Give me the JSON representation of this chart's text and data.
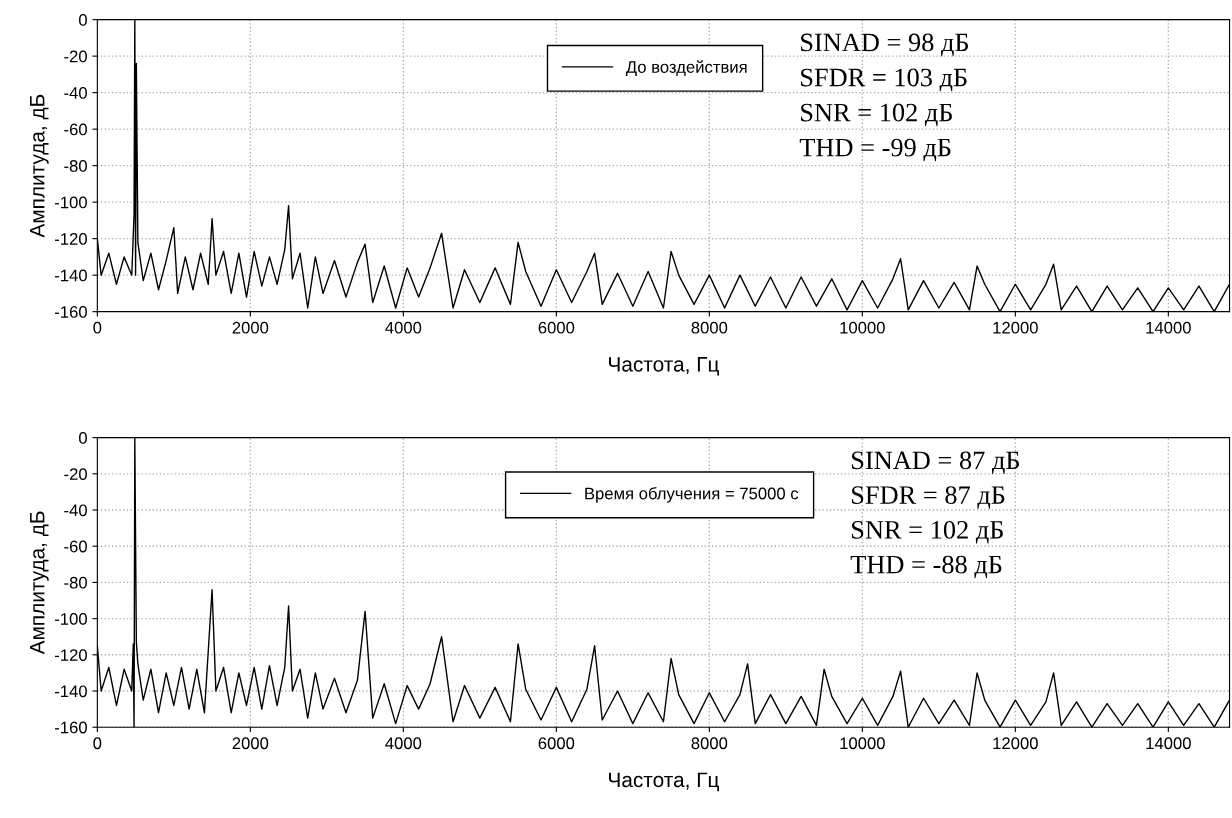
{
  "chart_data": [
    {
      "type": "line",
      "xlabel": "Частота, Гц",
      "ylabel": "Амплитуда, дБ",
      "xlim": [
        0,
        14800
      ],
      "ylim": [
        -160,
        0
      ],
      "xticks": [
        0,
        2000,
        4000,
        6000,
        8000,
        10000,
        12000,
        14000
      ],
      "yticks": [
        -160,
        -140,
        -120,
        -100,
        -80,
        -60,
        -40,
        -20,
        0
      ],
      "grid": true,
      "legend": "top right",
      "marker": "none",
      "line_style": "solid",
      "annotations": [
        "SINAD = 98 дБ",
        "SFDR = 103 дБ",
        "SNR = 102 дБ",
        "THD = -99 дБ"
      ],
      "series": [
        {
          "name": "До воздействия",
          "color": "#000000",
          "x": [
            0,
            50,
            150,
            250,
            350,
            450,
            480,
            490,
            500,
            510,
            530,
            600,
            700,
            800,
            900,
            1000,
            1050,
            1150,
            1250,
            1350,
            1450,
            1500,
            1550,
            1650,
            1750,
            1850,
            1950,
            2050,
            2150,
            2250,
            2350,
            2450,
            2500,
            2550,
            2650,
            2750,
            2850,
            2950,
            3100,
            3250,
            3400,
            3500,
            3600,
            3750,
            3900,
            4050,
            4200,
            4350,
            4500,
            4650,
            4800,
            5000,
            5200,
            5400,
            5500,
            5600,
            5800,
            6000,
            6200,
            6400,
            6500,
            6600,
            6800,
            7000,
            7200,
            7400,
            7500,
            7600,
            7800,
            8000,
            8200,
            8400,
            8600,
            8800,
            9000,
            9200,
            9400,
            9600,
            9800,
            10000,
            10200,
            10400,
            10500,
            10600,
            10800,
            11000,
            11200,
            11400,
            11500,
            11600,
            11800,
            12000,
            12200,
            12400,
            12500,
            12600,
            12800,
            13000,
            13200,
            13400,
            13600,
            13800,
            14000,
            14200,
            14400,
            14600,
            14800
          ],
          "values": [
            -120,
            -140,
            -128,
            -145,
            -130,
            -140,
            -107,
            0,
            -140,
            -24,
            -122,
            -143,
            -128,
            -148,
            -132,
            -114,
            -150,
            -130,
            -148,
            -128,
            -145,
            -109,
            -140,
            -127,
            -150,
            -128,
            -152,
            -127,
            -146,
            -130,
            -145,
            -126,
            -102,
            -142,
            -128,
            -158,
            -130,
            -150,
            -132,
            -152,
            -133,
            -123,
            -155,
            -135,
            -158,
            -136,
            -152,
            -136,
            -117,
            -158,
            -137,
            -155,
            -136,
            -156,
            -122,
            -138,
            -157,
            -137,
            -155,
            -138,
            -128,
            -156,
            -139,
            -157,
            -138,
            -158,
            -127,
            -140,
            -156,
            -140,
            -158,
            -140,
            -157,
            -141,
            -158,
            -141,
            -157,
            -142,
            -159,
            -143,
            -158,
            -142,
            -131,
            -159,
            -143,
            -158,
            -144,
            -159,
            -135,
            -145,
            -160,
            -145,
            -159,
            -145,
            -134,
            -159,
            -146,
            -160,
            -146,
            -159,
            -147,
            -160,
            -147,
            -159,
            -146,
            -160,
            -145
          ]
        }
      ]
    },
    {
      "type": "line",
      "xlabel": "Частота, Гц",
      "ylabel": "Амплитуда, дБ",
      "xlim": [
        0,
        14800
      ],
      "ylim": [
        -160,
        0
      ],
      "xticks": [
        0,
        2000,
        4000,
        6000,
        8000,
        10000,
        12000,
        14000
      ],
      "yticks": [
        -160,
        -140,
        -120,
        -100,
        -80,
        -60,
        -40,
        -20,
        0
      ],
      "grid": true,
      "legend": "top right",
      "marker": "none",
      "line_style": "solid",
      "annotations": [
        "SINAD = 87 дБ",
        "SFDR = 87 дБ",
        "SNR = 102 дБ",
        "THD = -88 дБ"
      ],
      "series": [
        {
          "name": "Время облучения = 75000 с",
          "color": "#000000",
          "x": [
            0,
            50,
            150,
            250,
            350,
            450,
            470,
            480,
            490,
            510,
            530,
            600,
            700,
            800,
            900,
            1000,
            1100,
            1200,
            1300,
            1400,
            1500,
            1550,
            1650,
            1750,
            1850,
            1950,
            2050,
            2150,
            2250,
            2350,
            2450,
            2500,
            2550,
            2650,
            2750,
            2850,
            2950,
            3100,
            3250,
            3400,
            3500,
            3600,
            3750,
            3900,
            4050,
            4200,
            4350,
            4500,
            4650,
            4800,
            5000,
            5200,
            5400,
            5500,
            5600,
            5800,
            6000,
            6200,
            6400,
            6500,
            6600,
            6800,
            7000,
            7200,
            7400,
            7500,
            7600,
            7800,
            8000,
            8200,
            8400,
            8500,
            8600,
            8800,
            9000,
            9200,
            9400,
            9500,
            9600,
            9800,
            10000,
            10200,
            10400,
            10500,
            10600,
            10800,
            11000,
            11200,
            11400,
            11500,
            11600,
            11800,
            12000,
            12200,
            12400,
            12500,
            12600,
            12800,
            13000,
            13200,
            13400,
            13600,
            13800,
            14000,
            14200,
            14400,
            14600,
            14800
          ],
          "values": [
            -115,
            -140,
            -127,
            -148,
            -128,
            -140,
            -114,
            -160,
            0,
            -113,
            -125,
            -145,
            -128,
            -152,
            -130,
            -148,
            -127,
            -150,
            -128,
            -152,
            -84,
            -140,
            -127,
            -152,
            -130,
            -148,
            -127,
            -150,
            -126,
            -148,
            -127,
            -93,
            -140,
            -128,
            -155,
            -130,
            -150,
            -133,
            -152,
            -134,
            -96,
            -155,
            -136,
            -158,
            -137,
            -150,
            -136,
            -110,
            -157,
            -137,
            -155,
            -138,
            -157,
            -114,
            -139,
            -156,
            -138,
            -157,
            -139,
            -115,
            -156,
            -140,
            -158,
            -141,
            -157,
            -122,
            -142,
            -158,
            -141,
            -157,
            -142,
            -125,
            -158,
            -142,
            -158,
            -143,
            -159,
            -128,
            -143,
            -158,
            -144,
            -159,
            -143,
            -129,
            -160,
            -144,
            -158,
            -145,
            -159,
            -130,
            -145,
            -160,
            -145,
            -159,
            -146,
            -130,
            -159,
            -146,
            -160,
            -147,
            -159,
            -147,
            -160,
            -146,
            -159,
            -147,
            -160,
            -145
          ]
        }
      ]
    }
  ]
}
